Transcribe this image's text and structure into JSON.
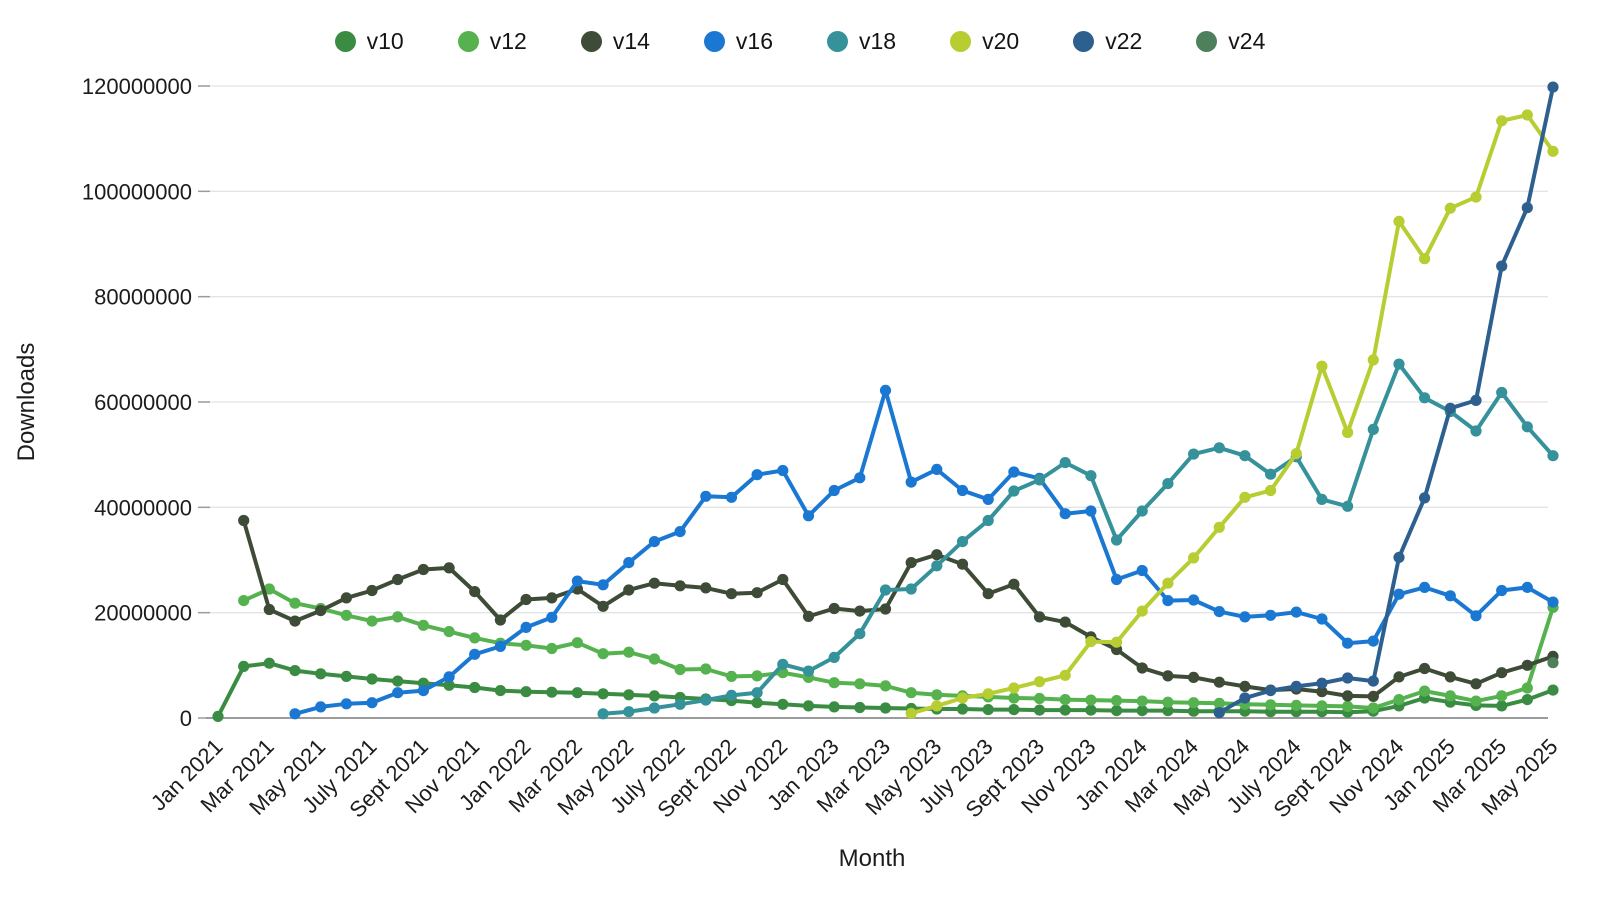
{
  "axes": {
    "y_title": "Downloads",
    "x_title": "Month",
    "y_ticks": [
      0,
      20000000,
      40000000,
      60000000,
      80000000,
      100000000,
      120000000
    ],
    "y_max": 120000000,
    "x_tick_every": 2,
    "x_tick_labels": [
      "Jan 2021",
      "Mar 2021",
      "May 2021",
      "July 2021",
      "Sept 2021",
      "Nov 2021",
      "Jan 2022",
      "Mar 2022",
      "May 2022",
      "July 2022",
      "Sept 2022",
      "Nov 2022",
      "Jan 2023",
      "Mar 2023",
      "May 2023",
      "July 2023",
      "Sept 2023",
      "Nov 2023",
      "Jan 2024",
      "Mar 2024",
      "May 2024",
      "July 2024",
      "Sept 2024",
      "Nov 2024",
      "Jan 2025",
      "Mar 2025",
      "May 2025"
    ],
    "grid": "horizontal",
    "x_label_rotation_deg": -45
  },
  "chart_data": {
    "type": "line",
    "title": "",
    "xlabel": "Month",
    "ylabel": "Downloads",
    "ylim": [
      0,
      120000000
    ],
    "legend_position": "top-center",
    "value_unit": "downloads",
    "values_scale_note": "series values are in millions of downloads",
    "months": [
      "Jan 2021",
      "Feb 2021",
      "Mar 2021",
      "Apr 2021",
      "May 2021",
      "Jun 2021",
      "Jul 2021",
      "Aug 2021",
      "Sep 2021",
      "Oct 2021",
      "Nov 2021",
      "Dec 2021",
      "Jan 2022",
      "Feb 2022",
      "Mar 2022",
      "Apr 2022",
      "May 2022",
      "Jun 2022",
      "Jul 2022",
      "Aug 2022",
      "Sep 2022",
      "Oct 2022",
      "Nov 2022",
      "Dec 2022",
      "Jan 2023",
      "Feb 2023",
      "Mar 2023",
      "Apr 2023",
      "May 2023",
      "Jun 2023",
      "Jul 2023",
      "Aug 2023",
      "Sep 2023",
      "Oct 2023",
      "Nov 2023",
      "Dec 2023",
      "Jan 2024",
      "Feb 2024",
      "Mar 2024",
      "Apr 2024",
      "May 2024",
      "Jun 2024",
      "Jul 2024",
      "Aug 2024",
      "Sep 2024",
      "Oct 2024",
      "Nov 2024",
      "Dec 2024",
      "Jan 2025",
      "Feb 2025",
      "Mar 2025",
      "Apr 2025",
      "May 2025"
    ],
    "series": [
      {
        "name": "v10",
        "color": "#3a8c42",
        "start_index": 0,
        "values_millions": [
          0.3,
          9.8,
          10.4,
          9.0,
          8.4,
          7.9,
          7.4,
          7.0,
          6.6,
          6.2,
          5.8,
          5.2,
          5.0,
          4.9,
          4.8,
          4.6,
          4.4,
          4.2,
          3.9,
          3.6,
          3.3,
          2.9,
          2.6,
          2.3,
          2.1,
          2.0,
          1.9,
          1.8,
          1.7,
          1.7,
          1.6,
          1.6,
          1.5,
          1.5,
          1.5,
          1.4,
          1.4,
          1.4,
          1.3,
          1.3,
          1.3,
          1.2,
          1.2,
          1.2,
          1.1,
          1.3,
          2.3,
          3.8,
          3.0,
          2.4,
          2.3,
          3.5,
          5.3
        ]
      },
      {
        "name": "v12",
        "color": "#55b24e",
        "start_index": 1,
        "values_millions": [
          22.3,
          24.5,
          21.8,
          20.8,
          19.5,
          18.4,
          19.2,
          17.6,
          16.4,
          15.2,
          14.2,
          13.8,
          13.2,
          14.3,
          12.2,
          12.5,
          11.2,
          9.2,
          9.3,
          7.9,
          8.0,
          8.6,
          7.7,
          6.7,
          6.5,
          6.1,
          4.8,
          4.4,
          4.2,
          4.0,
          3.8,
          3.7,
          3.5,
          3.4,
          3.3,
          3.2,
          3.0,
          2.9,
          2.8,
          2.6,
          2.5,
          2.4,
          2.3,
          2.2,
          1.9,
          3.5,
          5.1,
          4.2,
          3.2,
          4.2,
          5.7,
          21.0
        ]
      },
      {
        "name": "v14",
        "color": "#3d4b37",
        "start_index": 1,
        "values_millions": [
          37.5,
          20.6,
          18.4,
          20.4,
          22.8,
          24.2,
          26.3,
          28.2,
          28.5,
          24.0,
          18.6,
          22.5,
          22.8,
          24.5,
          21.2,
          24.3,
          25.6,
          25.1,
          24.7,
          23.6,
          23.8,
          26.3,
          19.3,
          20.8,
          20.3,
          20.7,
          29.5,
          31.0,
          29.2,
          23.6,
          25.4,
          19.2,
          18.2,
          15.4,
          13.0,
          9.5,
          8.0,
          7.7,
          6.8,
          6.0,
          5.3,
          5.5,
          5.0,
          4.2,
          4.1,
          7.8,
          9.4,
          7.8,
          6.5,
          8.6,
          10.0,
          11.7
        ]
      },
      {
        "name": "v16",
        "color": "#1a78d2",
        "start_index": 3,
        "values_millions": [
          0.8,
          2.1,
          2.7,
          2.9,
          4.8,
          5.2,
          7.8,
          12.1,
          13.6,
          17.2,
          19.1,
          26.0,
          25.3,
          29.5,
          33.5,
          35.4,
          42.1,
          41.9,
          46.2,
          47.0,
          38.4,
          43.2,
          45.6,
          62.2,
          44.8,
          47.2,
          43.2,
          41.5,
          46.7,
          45.5,
          38.8,
          39.3,
          26.3,
          28.0,
          22.3,
          22.4,
          20.2,
          19.2,
          19.5,
          20.1,
          18.8,
          14.2,
          14.6,
          23.5,
          24.8,
          23.2,
          19.4,
          24.2,
          24.8,
          22.0
        ]
      },
      {
        "name": "v18",
        "color": "#35919a",
        "start_index": 15,
        "values_millions": [
          0.8,
          1.2,
          1.9,
          2.6,
          3.4,
          4.3,
          4.8,
          10.2,
          8.9,
          11.5,
          16.0,
          24.3,
          24.5,
          28.9,
          33.5,
          37.5,
          43.1,
          45.2,
          48.5,
          46.0,
          33.8,
          39.3,
          44.5,
          50.1,
          51.3,
          49.8,
          46.3,
          49.6,
          41.5,
          40.2,
          54.8,
          67.2,
          60.8,
          58.2,
          54.5,
          61.8,
          55.3,
          49.8
        ]
      },
      {
        "name": "v20",
        "color": "#b7cd32",
        "start_index": 27,
        "values_millions": [
          0.9,
          2.3,
          3.8,
          4.6,
          5.7,
          6.9,
          8.1,
          14.5,
          14.4,
          20.3,
          25.6,
          30.4,
          36.2,
          41.9,
          43.2,
          50.2,
          66.8,
          54.2,
          68.0,
          94.3,
          87.2,
          96.8,
          98.9,
          113.4,
          114.5,
          107.6
        ]
      },
      {
        "name": "v22",
        "color": "#2d608f",
        "start_index": 39,
        "values_millions": [
          1.0,
          3.8,
          5.2,
          6.0,
          6.6,
          7.6,
          7.0,
          30.5,
          41.8,
          58.8,
          60.3,
          85.8,
          96.9,
          119.8
        ]
      },
      {
        "name": "v24",
        "color": "#4e805c",
        "start_index": 52,
        "values_millions": [
          10.5
        ]
      }
    ]
  }
}
